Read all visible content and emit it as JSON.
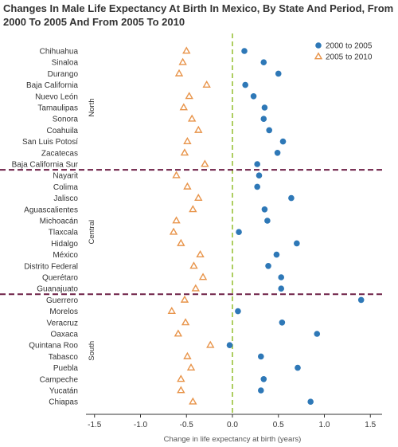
{
  "chart_data": {
    "type": "scatter",
    "title": "Changes In Male Life Expectancy At Birth In Mexico, By State And Period, From 2000 To 2005 And From 2005 To 2010",
    "xlabel": "Change in life expectancy at birth (years)",
    "xlim": [
      -1.6,
      1.6
    ],
    "xticks": [
      "-1.5",
      "-1.0",
      "-0.5",
      "0.0",
      "0.5",
      "1.0",
      "1.5"
    ],
    "tick_values": [
      -1.5,
      -1.0,
      -0.5,
      0.0,
      0.5,
      1.0,
      1.5
    ],
    "legend_position": "top-right",
    "zero_reference_line": true,
    "categories": [
      "Chihuahua",
      "Sinaloa",
      "Durango",
      "Baja California",
      "Nuevo León",
      "Tamaulipas",
      "Sonora",
      "Coahuila",
      "San Luis Potosí",
      "Zacatecas",
      "Baja California Sur",
      "Nayarit",
      "Colima",
      "Jalisco",
      "Aguascalientes",
      "Michoacán",
      "Tlaxcala",
      "Hidalgo",
      "México",
      "Distrito Federal",
      "Querétaro",
      "Guanajuato",
      "Guerrero",
      "Morelos",
      "Veracruz",
      "Oaxaca",
      "Quintana Roo",
      "Tabasco",
      "Puebla",
      "Campeche",
      "Yucatán",
      "Chiapas"
    ],
    "groups": [
      {
        "name": "North",
        "start": 0,
        "end": 10
      },
      {
        "name": "Central",
        "start": 11,
        "end": 21
      },
      {
        "name": "South",
        "start": 22,
        "end": 31
      }
    ],
    "series": [
      {
        "name": "2000 to 2005",
        "marker": "circle",
        "color": "#2e78b7",
        "values": [
          0.13,
          0.34,
          0.5,
          0.14,
          0.23,
          0.35,
          0.34,
          0.4,
          0.55,
          0.49,
          0.27,
          0.29,
          0.27,
          0.64,
          0.35,
          0.38,
          0.07,
          0.7,
          0.48,
          0.39,
          0.53,
          0.53,
          1.4,
          0.06,
          0.54,
          0.92,
          -0.03,
          0.31,
          0.71,
          0.34,
          0.31,
          0.85
        ]
      },
      {
        "name": "2005 to 2010",
        "marker": "triangle-open",
        "color": "#e8944a",
        "values": [
          -0.5,
          -0.54,
          -0.58,
          -0.28,
          -0.47,
          -0.53,
          -0.44,
          -0.37,
          -0.49,
          -0.52,
          -0.3,
          -0.61,
          -0.49,
          -0.37,
          -0.43,
          -0.61,
          -0.64,
          -0.56,
          -0.35,
          -0.42,
          -0.32,
          -0.4,
          -0.52,
          -0.66,
          -0.51,
          -0.59,
          -0.24,
          -0.49,
          -0.45,
          -0.56,
          -0.56,
          -0.43
        ]
      }
    ],
    "colors": {
      "zero_line": "#99c13a",
      "separator": "#6d1f45",
      "axis": "#333333"
    }
  }
}
